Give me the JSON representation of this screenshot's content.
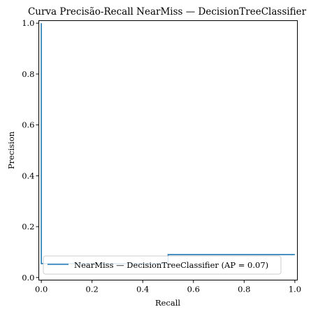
{
  "chart_data": {
    "type": "line",
    "title": "Curva Precisão-Recall NearMiss — DecisionTreeClassifier",
    "xlabel": "Recall",
    "ylabel": "Precision",
    "xlim": [
      -0.01,
      1.01
    ],
    "ylim": [
      -0.01,
      1.01
    ],
    "x_ticks": [
      0.0,
      0.2,
      0.4,
      0.6,
      0.8,
      1.0
    ],
    "x_tick_labels": [
      "0.0",
      "0.2",
      "0.4",
      "0.6",
      "0.8",
      "1.0"
    ],
    "y_ticks": [
      0.0,
      0.2,
      0.4,
      0.6,
      0.8,
      1.0
    ],
    "y_tick_labels": [
      "0.0",
      "0.2",
      "0.4",
      "0.6",
      "0.8",
      "1.0"
    ],
    "grid": false,
    "legend_position": "lower-left",
    "series": [
      {
        "name": "NearMiss — DecisionTreeClassifier (AP = 0.07)",
        "color": "#1f77b4",
        "drawstyle": "steps-post",
        "x": [
          0.0,
          0.0,
          0.5,
          0.5,
          1.0
        ],
        "y": [
          1.0,
          0.055,
          0.055,
          0.09,
          0.09
        ]
      }
    ]
  }
}
